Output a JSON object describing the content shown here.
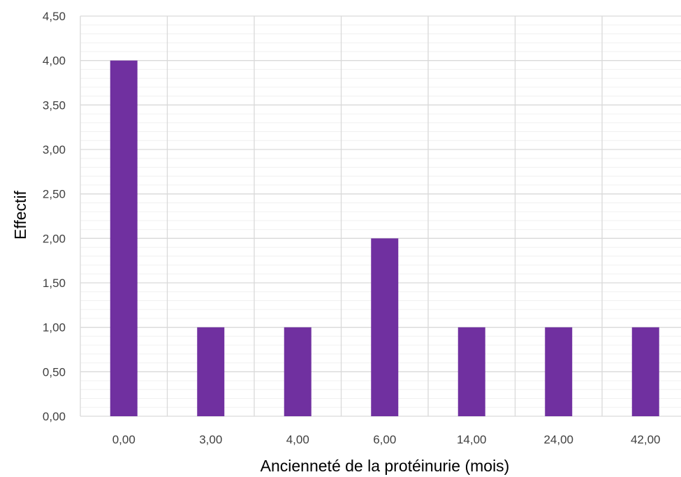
{
  "chart_data": {
    "type": "bar",
    "categories": [
      "0,00",
      "3,00",
      "4,00",
      "6,00",
      "14,00",
      "24,00",
      "42,00"
    ],
    "values": [
      4,
      1,
      1,
      2,
      1,
      1,
      1
    ],
    "xlabel": "Ancienneté de la protéinurie (mois)",
    "ylabel": "Effectif",
    "ylim": [
      0,
      4.5
    ],
    "yticks": [
      "0,00",
      "0,50",
      "1,00",
      "1,50",
      "2,00",
      "2,50",
      "3,00",
      "3,50",
      "4,00",
      "4,50"
    ],
    "y_major_step": 0.5,
    "y_minor_step": 0.1,
    "grid": true,
    "colors": {
      "bar": "#7030a0",
      "major_grid": "#d9d9d9",
      "minor_grid": "#f0f0f0",
      "tick_text": "#404040"
    }
  }
}
